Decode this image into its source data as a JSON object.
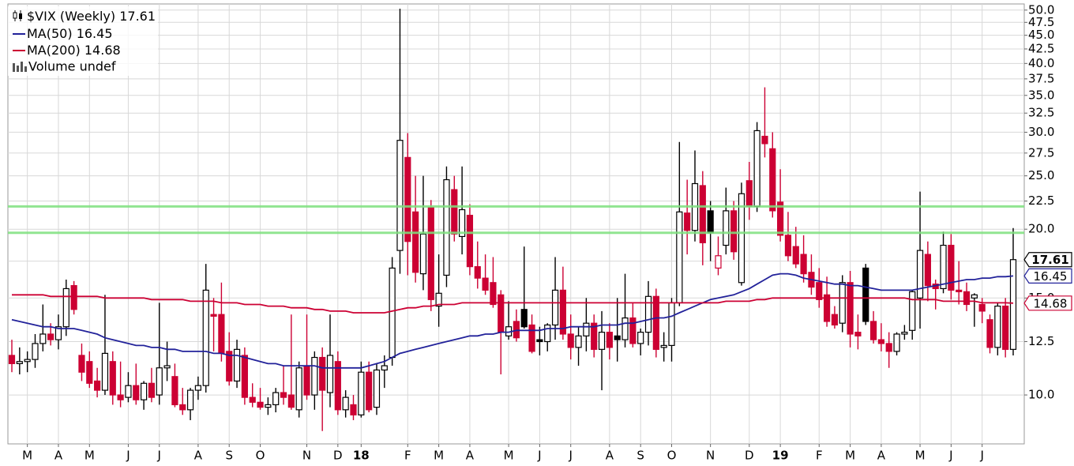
{
  "chart_data": {
    "type": "candlestick",
    "title": "$VIX (Weekly)",
    "volume_label": "Volume undef",
    "log_scale": true,
    "grid": true,
    "candle_colors": {
      "up": "#000000",
      "down": "#cc0033"
    },
    "ylim": [
      8.15,
      51.3
    ],
    "yticks": [
      {
        "value": 10,
        "label": "10.0"
      },
      12.5,
      {
        "value": 15,
        "label": "15.0"
      },
      17.5,
      {
        "value": 20,
        "label": "20.0"
      },
      22.5,
      {
        "value": 25,
        "label": "25.0"
      },
      27.5,
      {
        "value": 30,
        "label": "30.0"
      },
      32.5,
      {
        "value": 35,
        "label": "35.0"
      },
      37.5,
      {
        "value": 40,
        "label": "40.0"
      },
      42.5,
      {
        "value": 45,
        "label": "45.0"
      },
      47.5,
      {
        "value": 50,
        "label": "50.0"
      }
    ],
    "hlines": [
      {
        "value": 22.0,
        "color": "#7ee07e"
      },
      {
        "value": 19.7,
        "color": "#7ee07e"
      }
    ],
    "categories": [
      null,
      null,
      "M",
      null,
      null,
      null,
      "A",
      null,
      null,
      null,
      "M",
      null,
      null,
      null,
      null,
      "J",
      null,
      null,
      null,
      "J",
      null,
      null,
      null,
      null,
      "A",
      null,
      null,
      null,
      "S",
      null,
      null,
      null,
      "O",
      null,
      null,
      null,
      null,
      null,
      "N",
      null,
      null,
      null,
      "D",
      null,
      null,
      "18",
      null,
      null,
      null,
      null,
      null,
      "F",
      null,
      null,
      null,
      "M",
      null,
      null,
      null,
      "A",
      null,
      null,
      null,
      null,
      "M",
      null,
      null,
      null,
      "J",
      null,
      null,
      null,
      "J",
      null,
      null,
      null,
      null,
      "A",
      null,
      null,
      null,
      "S",
      null,
      null,
      null,
      "O",
      null,
      null,
      null,
      null,
      "N",
      null,
      null,
      null,
      null,
      "D",
      null,
      null,
      null,
      "19",
      null,
      null,
      null,
      null,
      "F",
      null,
      null,
      null,
      "M",
      null,
      null,
      null,
      "A",
      null,
      null,
      null,
      null,
      "M",
      null,
      null,
      null,
      "J",
      null,
      null,
      null,
      "J",
      null,
      null,
      null,
      null
    ],
    "open": [
      11.8,
      11.4,
      11.5,
      11.6,
      12.4,
      12.9,
      12.6,
      13.3,
      15.8,
      11.8,
      11.5,
      10.6,
      10.2,
      11.5,
      10.0,
      9.9,
      10.4,
      9.8,
      10.5,
      10.0,
      11.2,
      10.8,
      9.6,
      9.4,
      10.2,
      10.4,
      14.0,
      14.0,
      12.0,
      10.6,
      11.8,
      9.9,
      9.7,
      9.5,
      9.6,
      10.1,
      10.0,
      9.4,
      11.3,
      10.0,
      11.7,
      10.1,
      11.5,
      9.4,
      9.6,
      9.2,
      11.0,
      9.5,
      11.1,
      11.7,
      18.3,
      27.0,
      21.5,
      16.6,
      21.9,
      14.5,
      16.5,
      23.6,
      19.4,
      21.2,
      17.1,
      16.3,
      16.0,
      15.2,
      12.8,
      13.6,
      14.3,
      13.4,
      12.6,
      12.5,
      13.4,
      15.5,
      12.9,
      12.2,
      12.8,
      13.5,
      12.1,
      13.0,
      12.8,
      12.6,
      13.8,
      12.4,
      13.0,
      15.1,
      12.2,
      12.3,
      14.7,
      21.4,
      19.9,
      24.0,
      21.6,
      17.0,
      18.7,
      21.6,
      16.0,
      24.5,
      22.0,
      29.5,
      28.0,
      22.4,
      19.5,
      18.6,
      18.0,
      16.7,
      16.0,
      15.2,
      14.0,
      13.5,
      16.0,
      13.0,
      17.0,
      13.6,
      12.6,
      12.4,
      12.0,
      12.9,
      13.1,
      15.0,
      18.0,
      15.9,
      15.6,
      18.7,
      15.5,
      15.4,
      15.0,
      14.6,
      13.7,
      12.2,
      14.5,
      12.1
    ],
    "high": [
      12.6,
      12.2,
      12.0,
      12.9,
      14.6,
      13.5,
      14.0,
      16.2,
      16.1,
      12.4,
      12.0,
      11.2,
      15.2,
      12.0,
      11.5,
      11.0,
      11.4,
      10.6,
      11.2,
      14.7,
      12.5,
      11.4,
      10.3,
      10.3,
      10.8,
      17.3,
      15.0,
      16.0,
      13.0,
      12.6,
      12.2,
      10.5,
      10.3,
      9.9,
      10.3,
      11.3,
      14.0,
      11.5,
      14.0,
      12.0,
      12.2,
      14.0,
      12.0,
      10.2,
      10.0,
      11.5,
      11.5,
      11.4,
      11.8,
      17.8,
      50.3,
      29.9,
      25.0,
      25.0,
      22.6,
      18.0,
      26.0,
      25.0,
      26.0,
      22.2,
      19.0,
      18.0,
      17.8,
      15.5,
      14.8,
      14.3,
      18.6,
      14.0,
      13.3,
      13.5,
      17.8,
      17.1,
      14.0,
      13.3,
      15.0,
      14.0,
      14.2,
      13.5,
      15.0,
      16.6,
      14.7,
      13.2,
      16.1,
      15.6,
      13.0,
      15.0,
      28.8,
      24.6,
      27.8,
      25.5,
      22.5,
      19.4,
      23.8,
      22.5,
      24.3,
      26.5,
      31.3,
      36.2,
      30.0,
      25.7,
      21.5,
      20.2,
      19.5,
      18.0,
      17.0,
      16.4,
      14.5,
      16.5,
      16.8,
      14.0,
      17.3,
      14.2,
      13.5,
      13.0,
      13.0,
      13.4,
      15.5,
      23.4,
      19.0,
      16.2,
      19.8,
      19.6,
      17.5,
      16.0,
      15.3,
      15.0,
      14.0,
      14.7,
      15.0,
      20.1
    ],
    "low": [
      11.0,
      10.9,
      11.0,
      11.2,
      12.0,
      12.3,
      12.1,
      12.8,
      14.0,
      10.6,
      10.3,
      9.9,
      10.0,
      9.6,
      9.5,
      9.7,
      9.6,
      9.4,
      9.7,
      9.6,
      10.6,
      9.5,
      9.2,
      9.0,
      9.8,
      10.1,
      12.0,
      11.5,
      10.4,
      10.3,
      9.6,
      9.5,
      9.4,
      9.2,
      9.3,
      9.6,
      9.4,
      9.1,
      9.8,
      9.4,
      8.6,
      9.5,
      9.2,
      9.1,
      9.0,
      9.1,
      9.3,
      9.2,
      10.3,
      11.3,
      16.6,
      16.5,
      16.0,
      15.5,
      14.2,
      13.3,
      15.7,
      19.0,
      18.0,
      16.5,
      15.6,
      15.2,
      14.4,
      10.9,
      12.6,
      12.5,
      13.2,
      11.9,
      11.8,
      12.0,
      12.6,
      12.6,
      11.6,
      11.3,
      12.0,
      11.7,
      10.2,
      11.6,
      11.5,
      12.2,
      12.2,
      11.8,
      12.3,
      11.7,
      11.5,
      11.5,
      14.5,
      18.0,
      19.0,
      17.2,
      17.5,
      16.5,
      18.0,
      17.6,
      15.8,
      20.8,
      21.5,
      27.0,
      21.0,
      19.0,
      17.5,
      17.0,
      16.0,
      15.2,
      14.4,
      13.3,
      13.2,
      13.0,
      12.2,
      12.1,
      13.4,
      12.4,
      12.0,
      11.2,
      11.8,
      12.6,
      12.6,
      13.2,
      14.8,
      14.3,
      15.3,
      14.9,
      14.6,
      14.2,
      13.3,
      13.5,
      11.9,
      11.8,
      11.7,
      11.8
    ],
    "close": [
      11.4,
      11.5,
      11.6,
      12.4,
      12.9,
      12.6,
      13.3,
      15.6,
      14.3,
      11.0,
      10.5,
      10.2,
      11.9,
      10.0,
      9.8,
      10.4,
      9.8,
      10.5,
      9.9,
      11.2,
      11.3,
      9.6,
      9.4,
      10.2,
      10.4,
      15.5,
      13.9,
      11.9,
      10.6,
      12.1,
      9.9,
      9.7,
      9.5,
      9.6,
      10.1,
      9.9,
      9.5,
      11.2,
      10.0,
      11.7,
      10.2,
      11.8,
      9.4,
      9.9,
      9.2,
      11.0,
      9.4,
      11.1,
      11.3,
      17.0,
      29.0,
      19.0,
      16.7,
      19.6,
      14.9,
      15.3,
      24.6,
      19.6,
      21.7,
      17.1,
      16.3,
      15.5,
      14.6,
      13.0,
      13.3,
      12.7,
      13.3,
      12.0,
      12.5,
      13.4,
      15.5,
      12.9,
      12.2,
      12.8,
      13.5,
      12.1,
      13.0,
      12.2,
      12.6,
      13.8,
      12.4,
      13.0,
      15.1,
      12.1,
      12.3,
      14.7,
      21.5,
      19.9,
      24.2,
      18.9,
      19.7,
      17.9,
      21.6,
      18.2,
      23.2,
      22.0,
      30.2,
      28.6,
      21.6,
      19.5,
      17.9,
      17.3,
      16.6,
      15.7,
      14.9,
      13.6,
      13.4,
      16.0,
      12.9,
      12.8,
      13.6,
      12.6,
      12.4,
      12.0,
      12.9,
      13.0,
      15.4,
      18.3,
      15.8,
      15.6,
      18.7,
      15.5,
      15.4,
      14.6,
      15.2,
      14.2,
      12.2,
      14.5,
      12.1,
      17.61
    ],
    "series": [
      {
        "name": "MA(50)",
        "color": "#22229a",
        "values": [
          13.7,
          13.6,
          13.5,
          13.4,
          13.3,
          13.3,
          13.2,
          13.2,
          13.2,
          13.1,
          13.0,
          12.9,
          12.7,
          12.6,
          12.5,
          12.4,
          12.3,
          12.3,
          12.2,
          12.2,
          12.1,
          12.1,
          12.0,
          12.0,
          12.0,
          12.0,
          11.9,
          11.9,
          11.8,
          11.8,
          11.7,
          11.6,
          11.5,
          11.4,
          11.4,
          11.3,
          11.3,
          11.3,
          11.3,
          11.3,
          11.2,
          11.2,
          11.2,
          11.2,
          11.2,
          11.2,
          11.3,
          11.4,
          11.5,
          11.7,
          11.9,
          12.0,
          12.1,
          12.2,
          12.3,
          12.4,
          12.5,
          12.6,
          12.7,
          12.8,
          12.8,
          12.9,
          12.9,
          13.0,
          13.0,
          13.1,
          13.1,
          13.1,
          13.1,
          13.2,
          13.2,
          13.2,
          13.3,
          13.3,
          13.3,
          13.3,
          13.4,
          13.4,
          13.4,
          13.5,
          13.5,
          13.6,
          13.7,
          13.8,
          13.8,
          13.9,
          14.1,
          14.3,
          14.5,
          14.7,
          14.9,
          15.0,
          15.1,
          15.2,
          15.4,
          15.6,
          15.9,
          16.2,
          16.5,
          16.6,
          16.6,
          16.5,
          16.3,
          16.2,
          16.1,
          16.0,
          15.9,
          15.9,
          15.8,
          15.8,
          15.7,
          15.6,
          15.5,
          15.5,
          15.5,
          15.5,
          15.5,
          15.6,
          15.7,
          15.8,
          15.9,
          16.0,
          16.1,
          16.2,
          16.2,
          16.3,
          16.3,
          16.4,
          16.4,
          16.45
        ]
      },
      {
        "name": "MA(200)",
        "color": "#cc0033",
        "values": [
          15.2,
          15.2,
          15.2,
          15.2,
          15.2,
          15.1,
          15.1,
          15.1,
          15.1,
          15.1,
          15.1,
          15.1,
          15.0,
          15.0,
          15.0,
          15.0,
          15.0,
          15.0,
          14.9,
          14.9,
          14.9,
          14.9,
          14.9,
          14.8,
          14.8,
          14.8,
          14.8,
          14.7,
          14.7,
          14.7,
          14.6,
          14.6,
          14.6,
          14.5,
          14.5,
          14.5,
          14.4,
          14.4,
          14.4,
          14.3,
          14.3,
          14.2,
          14.2,
          14.2,
          14.1,
          14.1,
          14.1,
          14.1,
          14.1,
          14.2,
          14.3,
          14.4,
          14.4,
          14.5,
          14.5,
          14.6,
          14.6,
          14.6,
          14.7,
          14.7,
          14.7,
          14.7,
          14.7,
          14.7,
          14.7,
          14.7,
          14.7,
          14.7,
          14.7,
          14.7,
          14.7,
          14.7,
          14.7,
          14.7,
          14.7,
          14.7,
          14.7,
          14.7,
          14.7,
          14.7,
          14.7,
          14.7,
          14.7,
          14.7,
          14.7,
          14.7,
          14.7,
          14.7,
          14.7,
          14.7,
          14.7,
          14.7,
          14.8,
          14.8,
          14.8,
          14.8,
          14.9,
          14.9,
          15.0,
          15.0,
          15.0,
          15.0,
          15.0,
          15.0,
          15.0,
          15.0,
          15.0,
          15.0,
          15.0,
          15.0,
          15.0,
          15.0,
          15.0,
          15.0,
          15.0,
          15.0,
          14.9,
          14.9,
          14.9,
          14.9,
          14.8,
          14.8,
          14.8,
          14.8,
          14.8,
          14.7,
          14.7,
          14.7,
          14.7,
          14.68
        ]
      }
    ]
  }
}
